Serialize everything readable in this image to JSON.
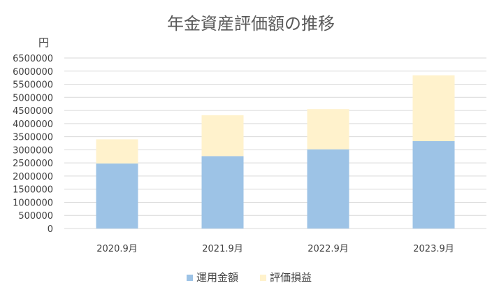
{
  "chart_data": {
    "type": "bar",
    "stacked": true,
    "title": "年金資産評価額の推移",
    "ylabel": "円",
    "xlabel": "",
    "categories": [
      "2020.9月",
      "2021.9月",
      "2022.9月",
      "2023.9月"
    ],
    "series": [
      {
        "name": "運用金額",
        "color": "#9dc3e6",
        "values": [
          2480000,
          2760000,
          3020000,
          3330000
        ]
      },
      {
        "name": "評価損益",
        "color": "#fff2cc",
        "values": [
          920000,
          1560000,
          1530000,
          2510000
        ]
      }
    ],
    "ylim": [
      0,
      6500000
    ],
    "yticks": [
      "0",
      "500000",
      "1000000",
      "1500000",
      "2000000",
      "2500000",
      "3000000",
      "3500000",
      "4000000",
      "4500000",
      "5000000",
      "5500000",
      "6000000",
      "6500000"
    ],
    "grid": true,
    "legend": "bottom"
  }
}
